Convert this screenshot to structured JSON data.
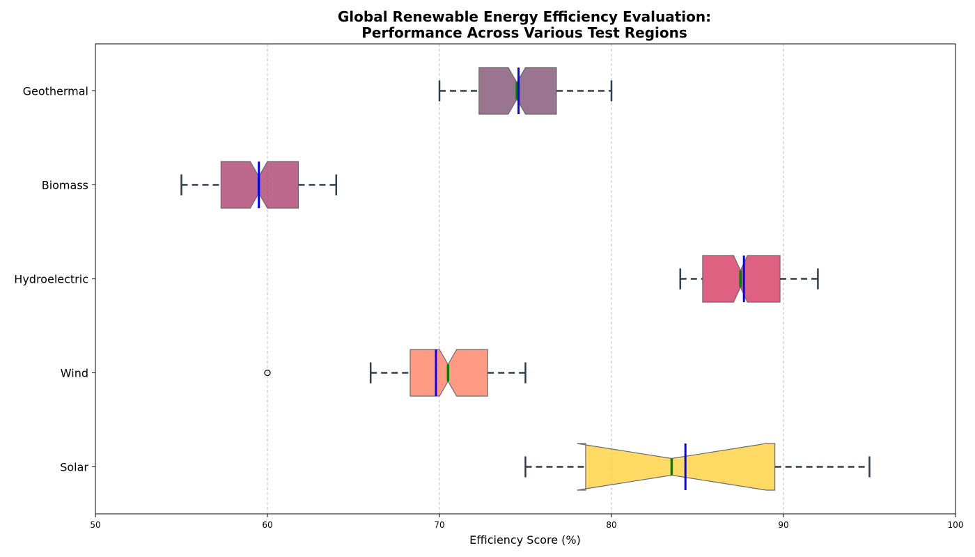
{
  "chart_data": {
    "type": "box",
    "orientation": "horizontal",
    "notched": true,
    "title_lines": [
      "Global Renewable Energy Efficiency Evaluation:",
      "Performance Across Various Test Regions"
    ],
    "xlabel": "Efficiency Score (%)",
    "ylabel": "",
    "xlim": [
      50,
      100
    ],
    "xticks": [
      50,
      60,
      70,
      80,
      90,
      100
    ],
    "grid": "x-dashed",
    "categories": [
      "Geothermal",
      "Biomass",
      "Hydroelectric",
      "Wind",
      "Solar"
    ],
    "boxes": [
      {
        "name": "Geothermal",
        "whisker_low": 70,
        "q1": 72.3,
        "median": 74.5,
        "mean": 74.6,
        "q3": 76.8,
        "whisker_high": 80,
        "notch_low": 74.0,
        "notch_high": 75.0,
        "color": "#825375",
        "fliers": []
      },
      {
        "name": "Biomass",
        "whisker_low": 55,
        "q1": 57.3,
        "median": 59.5,
        "mean": 59.5,
        "q3": 61.8,
        "whisker_high": 64,
        "notch_low": 59.0,
        "notch_high": 60.0,
        "color": "#ad4370",
        "fliers": []
      },
      {
        "name": "Hydroelectric",
        "whisker_low": 84,
        "q1": 85.3,
        "median": 87.5,
        "mean": 87.7,
        "q3": 89.8,
        "whisker_high": 92,
        "notch_low": 87.1,
        "notch_high": 87.9,
        "color": "#d63a63",
        "fliers": []
      },
      {
        "name": "Wind",
        "whisker_low": 66,
        "q1": 68.3,
        "median": 70.5,
        "mean": 69.8,
        "q3": 72.8,
        "whisker_high": 75,
        "notch_low": 70.0,
        "notch_high": 71.0,
        "color": "#ff8366",
        "fliers": [
          60
        ]
      },
      {
        "name": "Solar",
        "whisker_low": 75,
        "q1": 78.5,
        "median": 83.5,
        "mean": 84.3,
        "q3": 89.5,
        "whisker_high": 95,
        "notch_low": 78.0,
        "notch_high": 89.0,
        "color": "#ffd23f",
        "fliers": []
      }
    ]
  }
}
